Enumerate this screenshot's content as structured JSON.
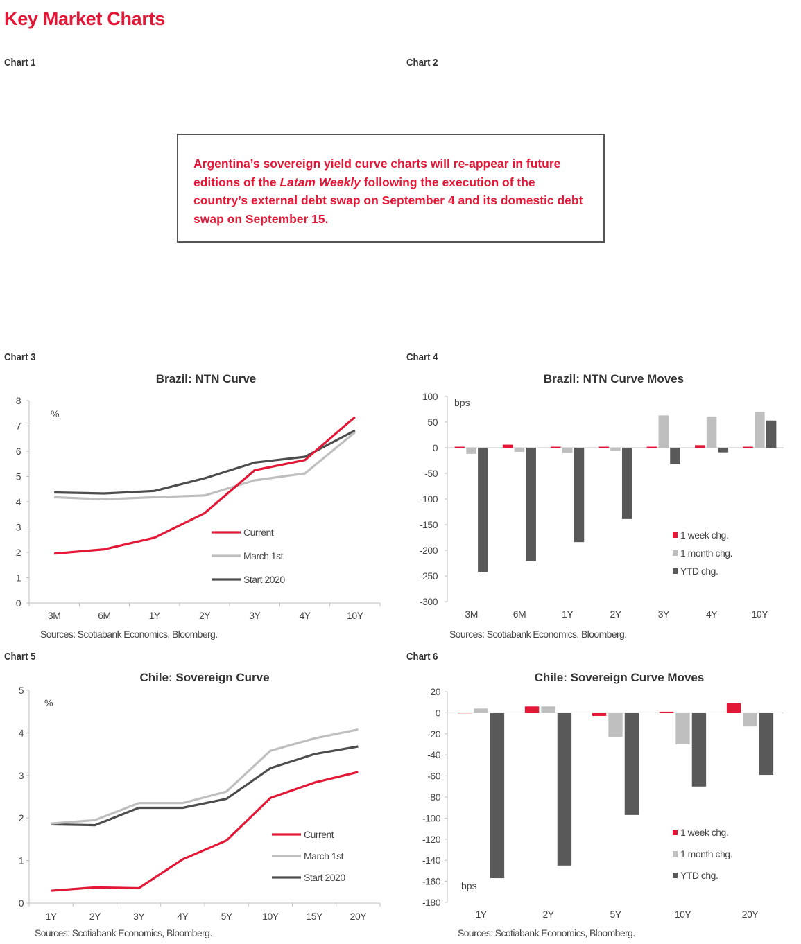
{
  "page": {
    "title": "Key Market Charts",
    "chart_labels": [
      "Chart 1",
      "Chart 2",
      "Chart 3",
      "Chart 4",
      "Chart 5",
      "Chart 6"
    ],
    "notice": {
      "part1": "Argentina’s sovereign yield curve charts will re-appear in future editions of the ",
      "italic": "Latam Weekly",
      "part2": " following the execution of the country’s external debt swap on September 4 and its domestic debt swap on September 15."
    }
  },
  "colors": {
    "accent": "#e31837",
    "current": "#e31837",
    "march": "#bfbfbf",
    "start": "#4d4d4d",
    "week": "#e31837",
    "month": "#bfbfbf",
    "ytd": "#595959"
  },
  "chart_data": [
    {
      "id": "chart3",
      "type": "line",
      "title": "Brazil: NTN Curve",
      "ylabel": "%",
      "source": "Sources: Scotiabank Economics, Bloomberg.",
      "categories": [
        "3M",
        "6M",
        "1Y",
        "2Y",
        "3Y",
        "4Y",
        "10Y"
      ],
      "ylim": [
        0,
        8
      ],
      "yticks": [
        0,
        1,
        2,
        3,
        4,
        5,
        6,
        7,
        8
      ],
      "legend_position": "center-right",
      "series": [
        {
          "name": "Current",
          "color_key": "current",
          "values": [
            1.95,
            2.12,
            2.58,
            3.55,
            5.25,
            5.65,
            7.35
          ]
        },
        {
          "name": "March 1st",
          "color_key": "march",
          "values": [
            4.18,
            4.1,
            4.18,
            4.25,
            4.85,
            5.12,
            6.75
          ]
        },
        {
          "name": "Start 2020",
          "color_key": "start",
          "values": [
            4.37,
            4.33,
            4.43,
            4.93,
            5.55,
            5.78,
            6.82
          ]
        }
      ]
    },
    {
      "id": "chart4",
      "type": "bar",
      "title": "Brazil: NTN Curve Moves",
      "ylabel": "bps",
      "source": "Sources: Scotiabank Economics, Bloomberg.",
      "categories": [
        "3M",
        "6M",
        "1Y",
        "2Y",
        "3Y",
        "4Y",
        "10Y"
      ],
      "ylim": [
        -300,
        100
      ],
      "yticks": [
        100,
        50,
        0,
        -50,
        -100,
        -150,
        -200,
        -250,
        -300
      ],
      "legend_position": "bottom-right",
      "series": [
        {
          "name": "1 week chg.",
          "color_key": "week",
          "values": [
            2,
            6,
            2,
            2,
            2,
            5,
            2
          ]
        },
        {
          "name": "1 month chg.",
          "color_key": "month",
          "values": [
            -12,
            -8,
            -10,
            -6,
            63,
            61,
            70
          ]
        },
        {
          "name": "YTD chg.",
          "color_key": "ytd",
          "values": [
            -242,
            -221,
            -184,
            -139,
            -32,
            -9,
            53
          ]
        }
      ]
    },
    {
      "id": "chart5",
      "type": "line",
      "title": "Chile: Sovereign Curve",
      "ylabel": "%",
      "source": "Sources: Scotiabank Economics, Bloomberg.",
      "categories": [
        "1Y",
        "2Y",
        "3Y",
        "4Y",
        "5Y",
        "10Y",
        "15Y",
        "20Y"
      ],
      "ylim": [
        0,
        5
      ],
      "yticks": [
        0,
        1,
        2,
        3,
        4,
        5
      ],
      "legend_position": "bottom-right",
      "series": [
        {
          "name": "Current",
          "color_key": "current",
          "values": [
            0.29,
            0.37,
            0.35,
            1.03,
            1.47,
            2.47,
            2.83,
            3.08
          ]
        },
        {
          "name": "March 1st",
          "color_key": "march",
          "values": [
            1.87,
            1.95,
            2.35,
            2.35,
            2.62,
            3.58,
            3.87,
            4.08
          ]
        },
        {
          "name": "Start 2020",
          "color_key": "start",
          "values": [
            1.85,
            1.83,
            2.24,
            2.24,
            2.45,
            3.17,
            3.5,
            3.68
          ]
        }
      ]
    },
    {
      "id": "chart6",
      "type": "bar",
      "title": "Chile: Sovereign Curve Moves",
      "ylabel": "bps",
      "source": "Sources: Scotiabank Economics, Bloomberg.",
      "categories": [
        "1Y",
        "2Y",
        "5Y",
        "10Y",
        "20Y"
      ],
      "ylim": [
        -180,
        20
      ],
      "yticks": [
        20,
        0,
        -20,
        -40,
        -60,
        -80,
        -100,
        -120,
        -140,
        -160,
        -180
      ],
      "legend_position": "bottom-right",
      "series": [
        {
          "name": "1 week chg.",
          "color_key": "week",
          "values": [
            0,
            6,
            -3,
            1,
            9
          ]
        },
        {
          "name": "1 month chg.",
          "color_key": "month",
          "values": [
            4,
            6,
            -23,
            -30,
            -13
          ]
        },
        {
          "name": "YTD chg.",
          "color_key": "ytd",
          "values": [
            -157,
            -145,
            -97,
            -70,
            -59
          ]
        }
      ]
    }
  ]
}
